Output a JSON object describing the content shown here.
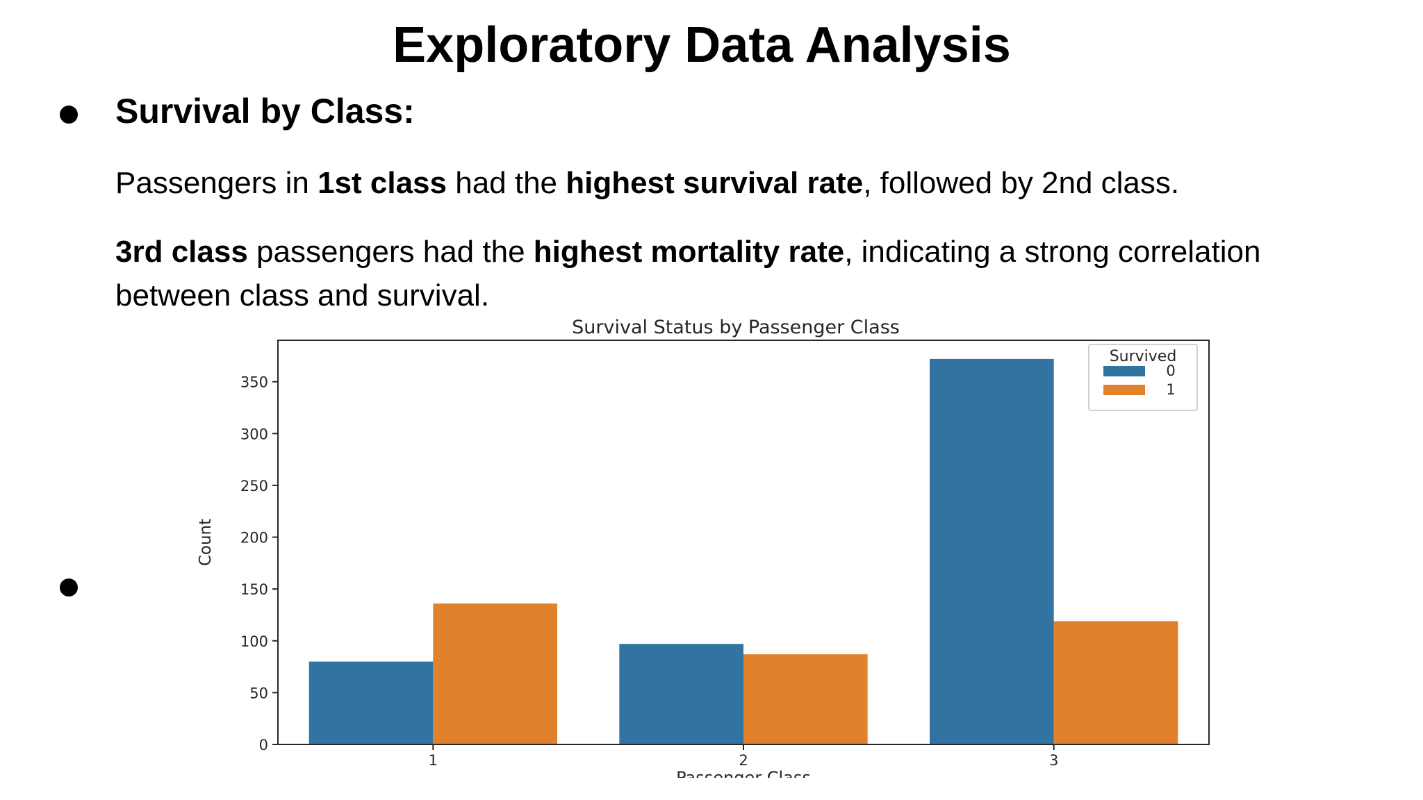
{
  "slide": {
    "title": "Exploratory Data Analysis",
    "heading": "Survival by Class:",
    "para1": [
      {
        "text": "Passengers in ",
        "bold": false
      },
      {
        "text": "1st class",
        "bold": true
      },
      {
        "text": " had the ",
        "bold": false
      },
      {
        "text": "highest survival rate",
        "bold": true
      },
      {
        "text": ", followed by 2nd class.",
        "bold": false
      }
    ],
    "para2": [
      {
        "text": "3rd class",
        "bold": true
      },
      {
        "text": " passengers had the ",
        "bold": false
      },
      {
        "text": "highest mortality rate",
        "bold": true
      },
      {
        "text": ", indicating a strong correlation between class and survival.",
        "bold": false
      }
    ]
  },
  "chart_data": {
    "type": "bar",
    "title": "Survival Status by Passenger Class",
    "xlabel": "Passenger Class",
    "ylabel": "Count",
    "categories": [
      "1",
      "2",
      "3"
    ],
    "series": [
      {
        "name": "0",
        "values": [
          80,
          97,
          372
        ],
        "color": "#3274a1"
      },
      {
        "name": "1",
        "values": [
          136,
          87,
          119
        ],
        "color": "#e1812c"
      }
    ],
    "legend_title": "Survived",
    "legend_position": "top-right",
    "yticks": [
      0,
      50,
      100,
      150,
      200,
      250,
      300,
      350
    ],
    "ylim": [
      0,
      390
    ],
    "grid": false
  }
}
